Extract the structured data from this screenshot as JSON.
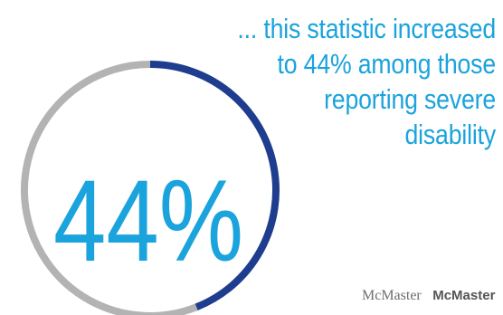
{
  "chart_data": {
    "type": "pie",
    "variant": "donut",
    "value": 44,
    "value_unit": "%",
    "center_label": "44%",
    "slices": [
      {
        "name": "",
        "value": 44,
        "color": "#1f3d8f"
      },
      {
        "name": "",
        "value": 56,
        "color": "#b3b3b3"
      }
    ],
    "title": "",
    "annotation_lines": [
      "... this statistic increased",
      "to 44% among those",
      "reporting severe",
      "disability"
    ]
  },
  "colors": {
    "accent_text": "#1aa3dc",
    "arc_highlight": "#1f3d8f",
    "arc_remainder": "#b3b3b3"
  },
  "footer": {
    "logo_serif_text": "McMaster",
    "logo_bold_text": "McMaster"
  }
}
